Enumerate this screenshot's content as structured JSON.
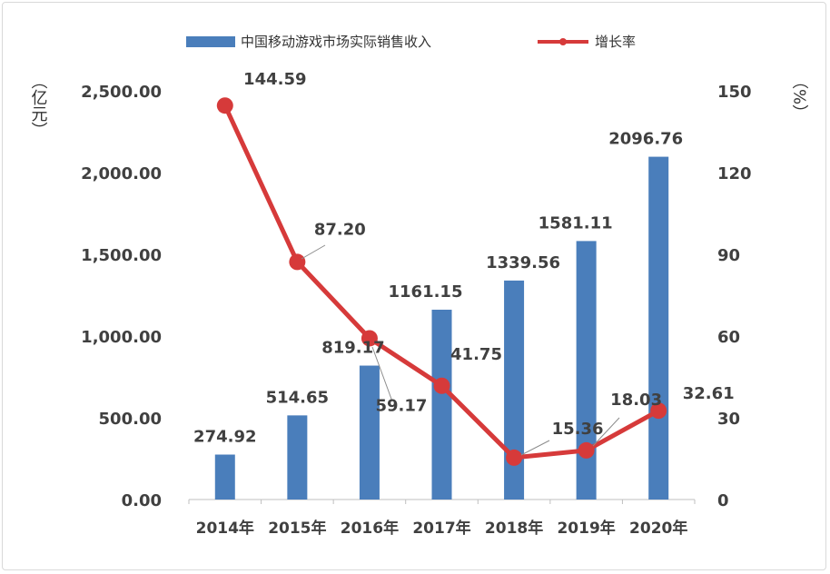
{
  "chart_data": {
    "type": "bar+line",
    "categories": [
      "2014年",
      "2015年",
      "2016年",
      "2017年",
      "2018年",
      "2019年",
      "2020年"
    ],
    "series": [
      {
        "name": "中国移动游戏市场实际销售收入",
        "type": "bar",
        "axis": "left",
        "values": [
          274.92,
          514.65,
          819.17,
          1161.15,
          1339.56,
          1581.11,
          2096.76
        ],
        "labels": [
          "274.92",
          "514.65",
          "819.17",
          "1161.15",
          "1339.56",
          "1581.11",
          "2096.76"
        ],
        "color": "#4a7ebb"
      },
      {
        "name": "增长率",
        "type": "line",
        "axis": "right",
        "values": [
          144.59,
          87.2,
          59.17,
          41.75,
          15.36,
          18.03,
          32.61
        ],
        "labels": [
          "144.59",
          "87.20",
          "59.17",
          "41.75",
          "15.36",
          "18.03",
          "32.61"
        ],
        "color": "#d63a3a"
      }
    ],
    "y_left": {
      "label": "（亿元）",
      "ylim": [
        0,
        2500
      ],
      "ticks": [
        0,
        500,
        1000,
        1500,
        2000,
        2500
      ],
      "tick_labels": [
        "0.00",
        "500.00",
        "1,000.00",
        "1,500.00",
        "2,000.00",
        "2,500.00"
      ]
    },
    "y_right": {
      "label": "（%）",
      "ylim": [
        0,
        150
      ],
      "ticks": [
        0,
        30,
        60,
        90,
        120,
        150
      ],
      "tick_labels": [
        "0",
        "30",
        "60",
        "90",
        "120",
        "150"
      ]
    },
    "grid": false,
    "legend_position": "top"
  }
}
